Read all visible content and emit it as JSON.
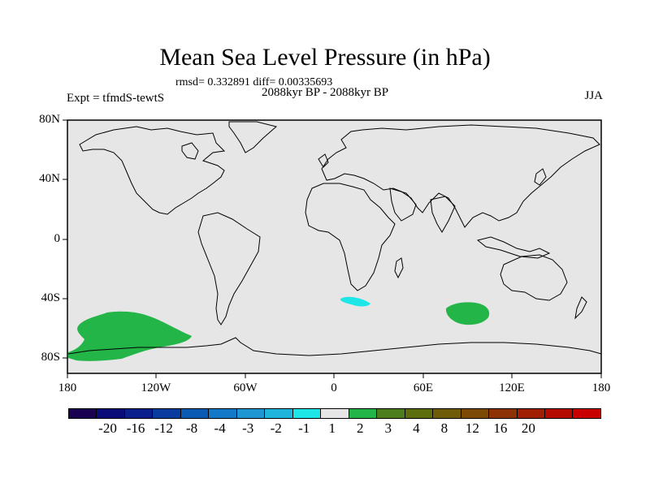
{
  "title": "Mean Sea Level Pressure (in hPa)",
  "stats": "rmsd= 0.332891 diff= 0.00335693",
  "period": "2088kyr BP - 2088kyr BP",
  "experiment": "Expt = tfmdS-tewtS",
  "season": "JJA",
  "map": {
    "ocean_color": "#e6e6e6",
    "coast_color": "#000000",
    "lat_labels": [
      "80N",
      "40N",
      "0",
      "40S",
      "80S"
    ],
    "lon_labels": [
      "180",
      "120W",
      "60W",
      "0",
      "60E",
      "120E",
      "180"
    ],
    "anomalies": [
      {
        "name": "south-pacific-positive",
        "color": "#24b548",
        "level": "1 to 2"
      },
      {
        "name": "south-atlantic-negative",
        "color": "#1ee6e6",
        "level": "-1 to -2"
      },
      {
        "name": "south-indian-positive",
        "color": "#24b548",
        "level": "1 to 2"
      }
    ]
  },
  "colorbar": {
    "colors": [
      "#190050",
      "#0a0a78",
      "#0a1e8c",
      "#0a3ca0",
      "#0a5ab4",
      "#1478c8",
      "#1e96d2",
      "#1eb4dc",
      "#1ee6e6",
      "#e6e6e6",
      "#24b548",
      "#4c7e1e",
      "#5c6e0e",
      "#6e5c08",
      "#7c4a06",
      "#8c3204",
      "#a01e02",
      "#b40a00",
      "#c80000"
    ],
    "labels": [
      "-20",
      "-16",
      "-12",
      "-8",
      "-4",
      "-3",
      "-2",
      "-1",
      "1",
      "2",
      "3",
      "4",
      "8",
      "12",
      "16",
      "20"
    ]
  }
}
